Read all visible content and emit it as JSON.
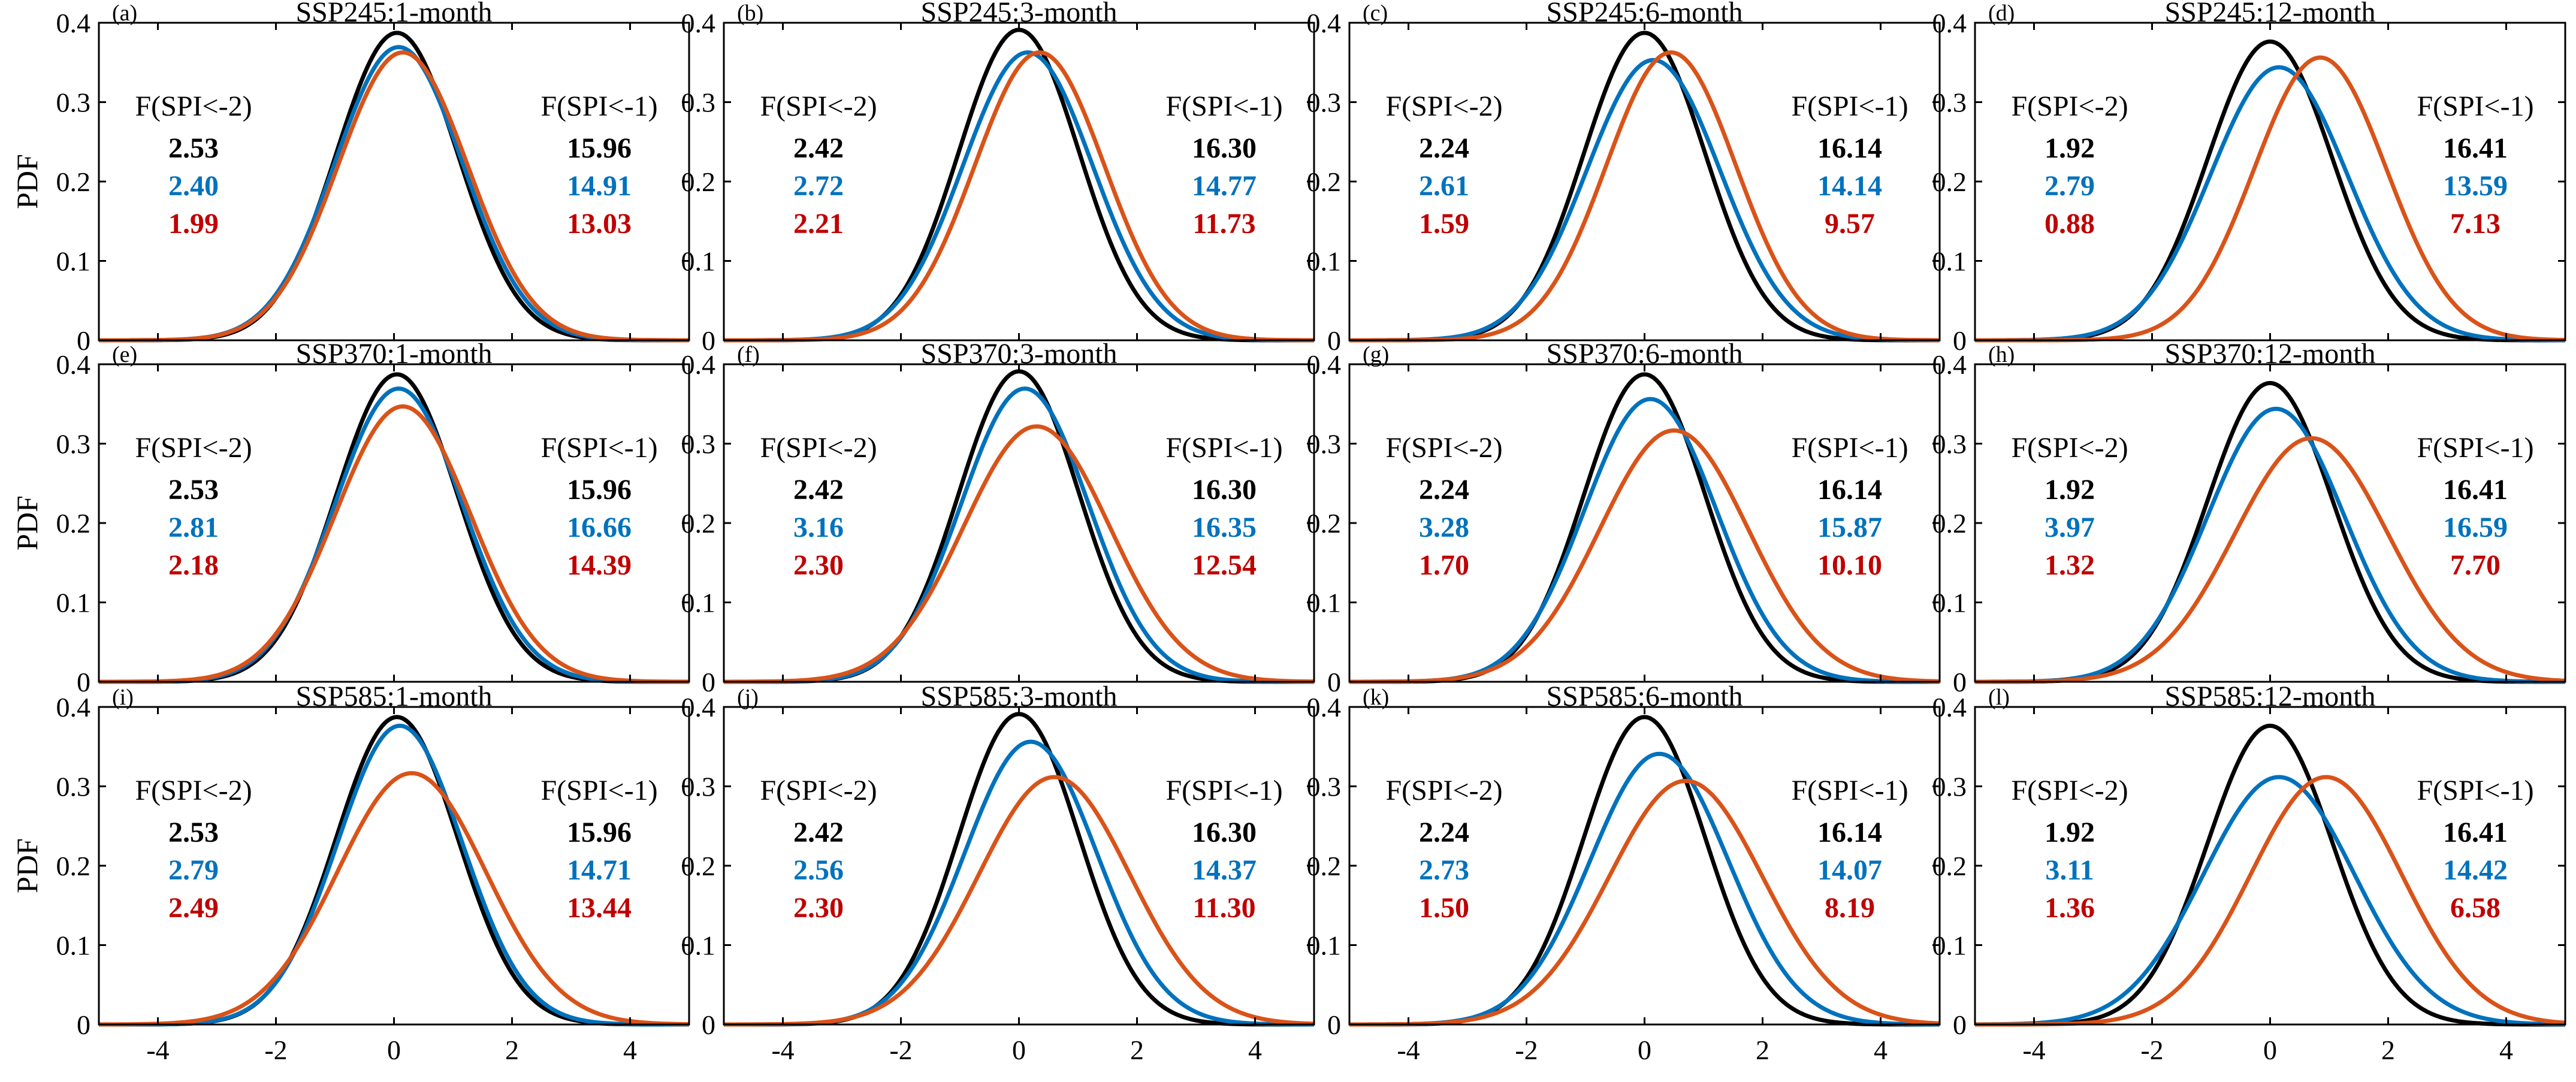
{
  "colors": {
    "baseline": "#000000",
    "blue": "#0072BD",
    "orange": "#D95319",
    "red_text": "#C00000"
  },
  "ylabel": "PDF",
  "left_header": "F(SPI<-2)",
  "right_header": "F(SPI<-1)",
  "chart_data": [
    {
      "type": "line",
      "label": "(a)",
      "title": "SSP245:1-month",
      "xlim": [
        -5,
        5
      ],
      "ylim": [
        0,
        0.4
      ],
      "xticks": [
        "-4",
        "-2",
        "0",
        "2",
        "4"
      ],
      "yticks": [
        "0",
        "0.1",
        "0.2",
        "0.3",
        "0.4"
      ],
      "series": [
        {
          "color": "black",
          "mean": 0.05,
          "sd": 1.03
        },
        {
          "color": "blue",
          "mean": 0.08,
          "sd": 1.08
        },
        {
          "color": "orange",
          "mean": 0.15,
          "sd": 1.1
        }
      ],
      "f_lt_m2": [
        "2.53",
        "2.40",
        "1.99"
      ],
      "f_lt_m1": [
        "15.96",
        "14.91",
        "13.03"
      ]
    },
    {
      "type": "line",
      "label": "(b)",
      "title": "SSP245:3-month",
      "xlim": [
        -5,
        5
      ],
      "ylim": [
        0,
        0.4
      ],
      "xticks": [
        "-4",
        "-2",
        "0",
        "2",
        "4"
      ],
      "yticks": [
        "0",
        "0.1",
        "0.2",
        "0.3",
        "0.4"
      ],
      "series": [
        {
          "color": "black",
          "mean": 0.0,
          "sd": 1.02
        },
        {
          "color": "blue",
          "mean": 0.15,
          "sd": 1.1
        },
        {
          "color": "orange",
          "mean": 0.35,
          "sd": 1.1
        }
      ],
      "f_lt_m2": [
        "2.42",
        "2.72",
        "2.21"
      ],
      "f_lt_m1": [
        "16.30",
        "14.77",
        "11.73"
      ]
    },
    {
      "type": "line",
      "label": "(c)",
      "title": "SSP245:6-month",
      "xlim": [
        -5,
        5
      ],
      "ylim": [
        0,
        0.4
      ],
      "xticks": [
        "-4",
        "-2",
        "0",
        "2",
        "4"
      ],
      "yticks": [
        "0",
        "0.1",
        "0.2",
        "0.3",
        "0.4"
      ],
      "series": [
        {
          "color": "black",
          "mean": 0.0,
          "sd": 1.03
        },
        {
          "color": "blue",
          "mean": 0.15,
          "sd": 1.13
        },
        {
          "color": "orange",
          "mean": 0.45,
          "sd": 1.1
        }
      ],
      "f_lt_m2": [
        "2.24",
        "2.61",
        "1.59"
      ],
      "f_lt_m1": [
        "16.14",
        "14.14",
        "9.57"
      ]
    },
    {
      "type": "line",
      "label": "(d)",
      "title": "SSP245:12-month",
      "xlim": [
        -5,
        5
      ],
      "ylim": [
        0,
        0.4
      ],
      "xticks": [
        "-4",
        "-2",
        "0",
        "2",
        "4"
      ],
      "yticks": [
        "0",
        "0.1",
        "0.2",
        "0.3",
        "0.4"
      ],
      "series": [
        {
          "color": "black",
          "mean": 0.0,
          "sd": 1.06
        },
        {
          "color": "blue",
          "mean": 0.15,
          "sd": 1.16
        },
        {
          "color": "orange",
          "mean": 0.85,
          "sd": 1.12
        }
      ],
      "f_lt_m2": [
        "1.92",
        "2.79",
        "0.88"
      ],
      "f_lt_m1": [
        "16.41",
        "13.59",
        "7.13"
      ]
    },
    {
      "type": "line",
      "label": "(e)",
      "title": "SSP370:1-month",
      "xlim": [
        -5,
        5
      ],
      "ylim": [
        0,
        0.4
      ],
      "xticks": [
        "-4",
        "-2",
        "0",
        "2",
        "4"
      ],
      "yticks": [
        "0",
        "0.1",
        "0.2",
        "0.3",
        "0.4"
      ],
      "series": [
        {
          "color": "black",
          "mean": 0.05,
          "sd": 1.03
        },
        {
          "color": "blue",
          "mean": 0.08,
          "sd": 1.08
        },
        {
          "color": "orange",
          "mean": 0.15,
          "sd": 1.15
        }
      ],
      "f_lt_m2": [
        "2.53",
        "2.81",
        "2.18"
      ],
      "f_lt_m1": [
        "15.96",
        "16.66",
        "14.39"
      ]
    },
    {
      "type": "line",
      "label": "(f)",
      "title": "SSP370:3-month",
      "xlim": [
        -5,
        5
      ],
      "ylim": [
        0,
        0.4
      ],
      "xticks": [
        "-4",
        "-2",
        "0",
        "2",
        "4"
      ],
      "yticks": [
        "0",
        "0.1",
        "0.2",
        "0.3",
        "0.4"
      ],
      "series": [
        {
          "color": "black",
          "mean": 0.0,
          "sd": 1.02
        },
        {
          "color": "blue",
          "mean": 0.1,
          "sd": 1.08
        },
        {
          "color": "orange",
          "mean": 0.3,
          "sd": 1.24
        }
      ],
      "f_lt_m2": [
        "2.42",
        "3.16",
        "2.30"
      ],
      "f_lt_m1": [
        "16.30",
        "16.35",
        "12.54"
      ]
    },
    {
      "type": "line",
      "label": "(g)",
      "title": "SSP370:6-month",
      "xlim": [
        -5,
        5
      ],
      "ylim": [
        0,
        0.4
      ],
      "xticks": [
        "-4",
        "-2",
        "0",
        "2",
        "4"
      ],
      "yticks": [
        "0",
        "0.1",
        "0.2",
        "0.3",
        "0.4"
      ],
      "series": [
        {
          "color": "black",
          "mean": 0.0,
          "sd": 1.03
        },
        {
          "color": "blue",
          "mean": 0.1,
          "sd": 1.12
        },
        {
          "color": "orange",
          "mean": 0.5,
          "sd": 1.26
        }
      ],
      "f_lt_m2": [
        "2.24",
        "3.28",
        "1.70"
      ],
      "f_lt_m1": [
        "16.14",
        "15.87",
        "10.10"
      ]
    },
    {
      "type": "line",
      "label": "(h)",
      "title": "SSP370:12-month",
      "xlim": [
        -5,
        5
      ],
      "ylim": [
        0,
        0.4
      ],
      "xticks": [
        "-4",
        "-2",
        "0",
        "2",
        "4"
      ],
      "yticks": [
        "0",
        "0.1",
        "0.2",
        "0.3",
        "0.4"
      ],
      "series": [
        {
          "color": "black",
          "mean": 0.0,
          "sd": 1.06
        },
        {
          "color": "blue",
          "mean": 0.1,
          "sd": 1.16
        },
        {
          "color": "orange",
          "mean": 0.7,
          "sd": 1.3
        }
      ],
      "f_lt_m2": [
        "1.92",
        "3.97",
        "1.32"
      ],
      "f_lt_m1": [
        "16.41",
        "16.59",
        "7.70"
      ]
    },
    {
      "type": "line",
      "label": "(i)",
      "title": "SSP585:1-month",
      "xlim": [
        -5,
        5
      ],
      "ylim": [
        0,
        0.4
      ],
      "xticks": [
        "-4",
        "-2",
        "0",
        "2",
        "4"
      ],
      "yticks": [
        "0",
        "0.1",
        "0.2",
        "0.3",
        "0.4"
      ],
      "series": [
        {
          "color": "black",
          "mean": 0.05,
          "sd": 1.03
        },
        {
          "color": "blue",
          "mean": 0.1,
          "sd": 1.06
        },
        {
          "color": "orange",
          "mean": 0.3,
          "sd": 1.26
        }
      ],
      "f_lt_m2": [
        "2.53",
        "2.79",
        "2.49"
      ],
      "f_lt_m1": [
        "15.96",
        "14.71",
        "13.44"
      ]
    },
    {
      "type": "line",
      "label": "(j)",
      "title": "SSP585:3-month",
      "xlim": [
        -5,
        5
      ],
      "ylim": [
        0,
        0.4
      ],
      "xticks": [
        "-4",
        "-2",
        "0",
        "2",
        "4"
      ],
      "yticks": [
        "0",
        "0.1",
        "0.2",
        "0.3",
        "0.4"
      ],
      "series": [
        {
          "color": "black",
          "mean": 0.0,
          "sd": 1.02
        },
        {
          "color": "blue",
          "mean": 0.2,
          "sd": 1.12
        },
        {
          "color": "orange",
          "mean": 0.6,
          "sd": 1.28
        }
      ],
      "f_lt_m2": [
        "2.42",
        "2.56",
        "2.30"
      ],
      "f_lt_m1": [
        "16.30",
        "14.37",
        "11.30"
      ]
    },
    {
      "type": "line",
      "label": "(k)",
      "title": "SSP585:6-month",
      "xlim": [
        -5,
        5
      ],
      "ylim": [
        0,
        0.4
      ],
      "xticks": [
        "-4",
        "-2",
        "0",
        "2",
        "4"
      ],
      "yticks": [
        "0",
        "0.1",
        "0.2",
        "0.3",
        "0.4"
      ],
      "series": [
        {
          "color": "black",
          "mean": 0.0,
          "sd": 1.03
        },
        {
          "color": "blue",
          "mean": 0.25,
          "sd": 1.17
        },
        {
          "color": "orange",
          "mean": 0.7,
          "sd": 1.3
        }
      ],
      "f_lt_m2": [
        "2.24",
        "2.73",
        "1.50"
      ],
      "f_lt_m1": [
        "16.14",
        "14.07",
        "8.19"
      ]
    },
    {
      "type": "line",
      "label": "(l)",
      "title": "SSP585:12-month",
      "xlim": [
        -5,
        5
      ],
      "ylim": [
        0,
        0.4
      ],
      "xticks": [
        "-4",
        "-2",
        "0",
        "2",
        "4"
      ],
      "yticks": [
        "0",
        "0.1",
        "0.2",
        "0.3",
        "0.4"
      ],
      "series": [
        {
          "color": "black",
          "mean": 0.0,
          "sd": 1.06
        },
        {
          "color": "blue",
          "mean": 0.15,
          "sd": 1.28
        },
        {
          "color": "orange",
          "mean": 0.95,
          "sd": 1.28
        }
      ],
      "f_lt_m2": [
        "1.92",
        "3.11",
        "1.36"
      ],
      "f_lt_m1": [
        "16.41",
        "14.42",
        "6.58"
      ]
    }
  ]
}
